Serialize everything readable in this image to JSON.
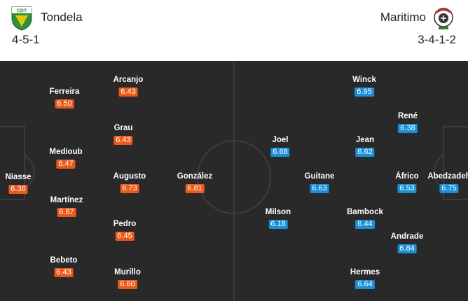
{
  "home": {
    "name": "Tondela",
    "formation": "4-5-1",
    "crest_text": "CDT",
    "rating_color": "#e8591a",
    "players": [
      {
        "name": "Niasse",
        "rating": "6.36"
      },
      {
        "name": "Ferreira",
        "rating": "6.50"
      },
      {
        "name": "Medioub",
        "rating": "6.47"
      },
      {
        "name": "Martínez",
        "rating": "6.87"
      },
      {
        "name": "Bebeto",
        "rating": "6.43"
      },
      {
        "name": "Arcanjo",
        "rating": "6.43"
      },
      {
        "name": "Grau",
        "rating": "6.43"
      },
      {
        "name": "Augusto",
        "rating": "6.73"
      },
      {
        "name": "Pedro",
        "rating": "6.45"
      },
      {
        "name": "Murillo",
        "rating": "6.60"
      },
      {
        "name": "González",
        "rating": "6.81"
      }
    ]
  },
  "away": {
    "name": "Maritimo",
    "formation": "3-4-1-2",
    "rating_color": "#1a8fd6",
    "players": [
      {
        "name": "Abedzadeh",
        "rating": "6.75"
      },
      {
        "name": "René",
        "rating": "6.38"
      },
      {
        "name": "Áfrico",
        "rating": "6.53"
      },
      {
        "name": "Andrade",
        "rating": "6.84"
      },
      {
        "name": "Winck",
        "rating": "6.95"
      },
      {
        "name": "Jean",
        "rating": "6.62"
      },
      {
        "name": "Bambock",
        "rating": "6.44"
      },
      {
        "name": "Hermes",
        "rating": "6.64"
      },
      {
        "name": "Guitane",
        "rating": "6.63"
      },
      {
        "name": "Joel",
        "rating": "6.68"
      },
      {
        "name": "Milson",
        "rating": "6.18"
      }
    ]
  },
  "pitch_color": "#292929"
}
